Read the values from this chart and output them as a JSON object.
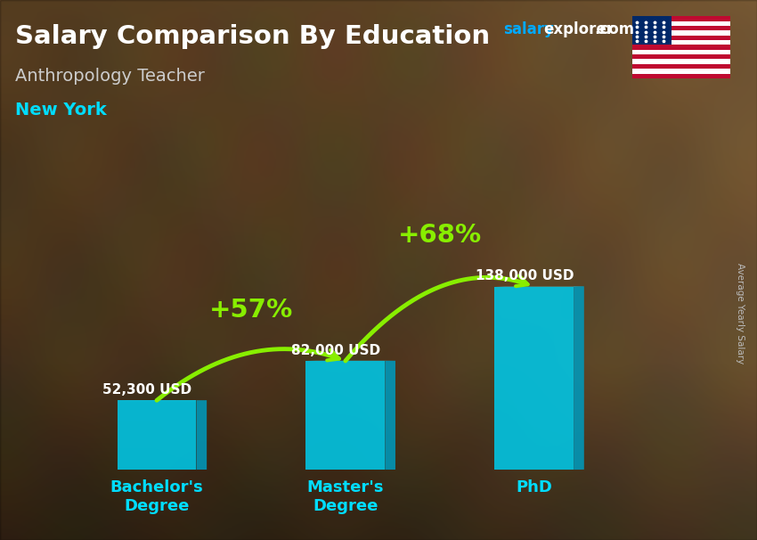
{
  "title": "Salary Comparison By Education",
  "subtitle": "Anthropology Teacher",
  "location": "New York",
  "ylabel": "Average Yearly Salary",
  "categories": [
    "Bachelor's\nDegree",
    "Master's\nDegree",
    "PhD"
  ],
  "values": [
    52300,
    82000,
    138000
  ],
  "value_labels": [
    "52,300 USD",
    "82,000 USD",
    "138,000 USD"
  ],
  "bar_color_main": "#00C8E8",
  "bar_color_right": "#0099BB",
  "bar_color_top": "#55DDEE",
  "pct_labels": [
    "+57%",
    "+68%"
  ],
  "pct_color": "#88EE00",
  "title_color": "#FFFFFF",
  "subtitle_color": "#CCCCCC",
  "location_color": "#00DDFF",
  "tick_label_color": "#00DDFF",
  "value_label_color": "#FFFFFF",
  "watermark_salary_color": "#00AAFF",
  "watermark_rest_color": "#FFFFFF",
  "figsize": [
    8.5,
    6.06
  ],
  "dpi": 100
}
